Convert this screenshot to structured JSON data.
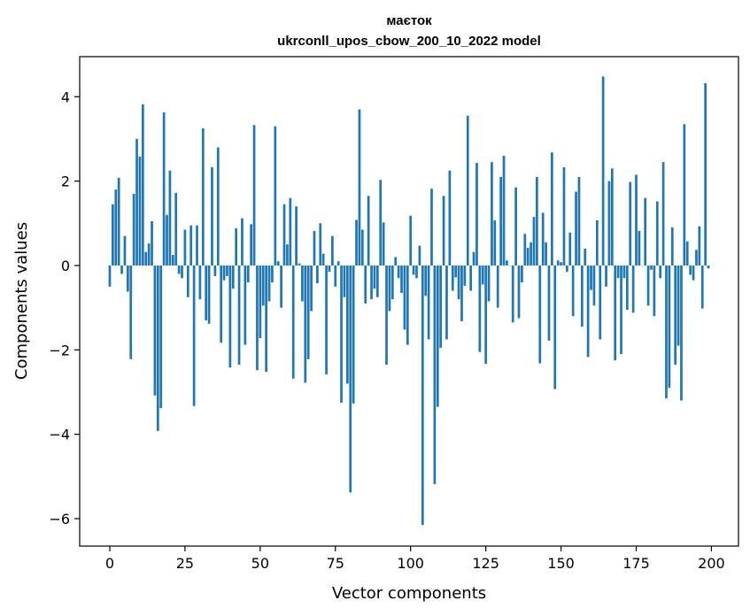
{
  "chart_data": {
    "type": "bar",
    "title": "маєток",
    "subtitle": "ukrconll_upos_cbow_200_10_2022 model",
    "xlabel": "Vector components",
    "ylabel": "Components values",
    "xlim": [
      -10,
      209
    ],
    "ylim": [
      -6.65,
      4.95
    ],
    "xticks": [
      0,
      25,
      50,
      75,
      100,
      125,
      150,
      175,
      200
    ],
    "yticks": [
      4,
      2,
      0,
      -2,
      -4,
      -6
    ],
    "ytick_labels": [
      "4",
      "2",
      "0",
      "−2",
      "−4",
      "−6"
    ],
    "grid": false,
    "bar_color": "#1f77b4",
    "x": [
      0,
      1,
      2,
      3,
      4,
      5,
      6,
      7,
      8,
      9,
      10,
      11,
      12,
      13,
      14,
      15,
      16,
      17,
      18,
      19,
      20,
      21,
      22,
      23,
      24,
      25,
      26,
      27,
      28,
      29,
      30,
      31,
      32,
      33,
      34,
      35,
      36,
      37,
      38,
      39,
      40,
      41,
      42,
      43,
      44,
      45,
      46,
      47,
      48,
      49,
      50,
      51,
      52,
      53,
      54,
      55,
      56,
      57,
      58,
      59,
      60,
      61,
      62,
      63,
      64,
      65,
      66,
      67,
      68,
      69,
      70,
      71,
      72,
      73,
      74,
      75,
      76,
      77,
      78,
      79,
      80,
      81,
      82,
      83,
      84,
      85,
      86,
      87,
      88,
      89,
      90,
      91,
      92,
      93,
      94,
      95,
      96,
      97,
      98,
      99,
      100,
      101,
      102,
      103,
      104,
      105,
      106,
      107,
      108,
      109,
      110,
      111,
      112,
      113,
      114,
      115,
      116,
      117,
      118,
      119,
      120,
      121,
      122,
      123,
      124,
      125,
      126,
      127,
      128,
      129,
      130,
      131,
      132,
      133,
      134,
      135,
      136,
      137,
      138,
      139,
      140,
      141,
      142,
      143,
      144,
      145,
      146,
      147,
      148,
      149,
      150,
      151,
      152,
      153,
      154,
      155,
      156,
      157,
      158,
      159,
      160,
      161,
      162,
      163,
      164,
      165,
      166,
      167,
      168,
      169,
      170,
      171,
      172,
      173,
      174,
      175,
      176,
      177,
      178,
      179,
      180,
      181,
      182,
      183,
      184,
      185,
      186,
      187,
      188,
      189,
      190,
      191,
      192,
      193,
      194,
      195,
      196,
      197,
      198,
      199
    ],
    "values": [
      -0.5,
      1.45,
      1.8,
      2.08,
      -0.2,
      0.7,
      -0.62,
      -2.22,
      1.7,
      3.0,
      2.58,
      3.82,
      0.32,
      0.52,
      1.05,
      -3.08,
      -3.92,
      -3.38,
      3.63,
      1.2,
      2.25,
      0.25,
      1.72,
      -0.2,
      -0.3,
      0.85,
      -0.75,
      0.95,
      -3.33,
      0.95,
      -0.8,
      3.25,
      -1.3,
      -1.38,
      2.33,
      -0.25,
      2.8,
      -1.83,
      -0.35,
      -0.25,
      -2.42,
      -0.55,
      0.88,
      -2.35,
      1.12,
      -1.88,
      -0.4,
      0.98,
      3.33,
      -2.48,
      -1.72,
      -0.95,
      -2.52,
      -0.85,
      -0.4,
      3.3,
      0.1,
      -1.0,
      1.45,
      0.5,
      1.6,
      -2.68,
      1.4,
      0.05,
      -0.85,
      -2.78,
      -2.22,
      -1.08,
      0.82,
      -0.42,
      1.0,
      0.28,
      -2.58,
      -0.15,
      0.7,
      -0.5,
      0.1,
      -3.25,
      -0.75,
      -2.8,
      -5.38,
      -3.27,
      1.08,
      3.7,
      0.85,
      -0.9,
      1.65,
      -0.8,
      -0.55,
      -0.75,
      2.03,
      1.02,
      -2.35,
      -1.08,
      -0.8,
      0.2,
      -0.3,
      -0.65,
      -1.52,
      -1.88,
      1.18,
      -0.22,
      -0.3,
      0.47,
      -6.15,
      -0.72,
      -1.75,
      1.82,
      -5.18,
      -3.35,
      -1.95,
      1.65,
      -1.75,
      2.25,
      -0.6,
      -0.28,
      -0.8,
      -1.32,
      -0.48,
      3.55,
      -0.6,
      0.32,
      2.43,
      -2.05,
      -0.45,
      -2.33,
      -0.85,
      2.45,
      1.07,
      -1.0,
      2.1,
      2.6,
      0.12,
      0.0,
      -1.35,
      1.85,
      -1.25,
      -0.4,
      0.75,
      0.42,
      0.55,
      1.15,
      2.1,
      -2.32,
      1.25,
      0.55,
      -1.78,
      2.68,
      -2.93,
      0.12,
      0.08,
      2.33,
      -0.15,
      0.78,
      -1.2,
      1.75,
      2.1,
      -1.45,
      0.4,
      -2.17,
      -0.58,
      -0.95,
      1.07,
      -1.75,
      4.48,
      -0.5,
      2.0,
      2.3,
      -2.25,
      -0.3,
      -2.1,
      -0.3,
      -1.05,
      1.98,
      -1.12,
      2.15,
      0.82,
      0.0,
      1.6,
      -0.95,
      -0.1,
      -1.2,
      1.52,
      -0.3,
      2.45,
      -3.15,
      -2.9,
      0.9,
      -2.35,
      -1.9,
      -3.2,
      3.35,
      0.57,
      -0.22,
      -0.35,
      0.37,
      0.93,
      -1.02,
      4.32,
      -0.07
    ]
  }
}
